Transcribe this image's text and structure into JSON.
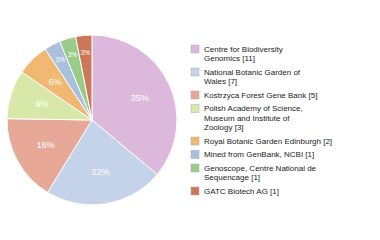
{
  "chart_data": {
    "type": "pie",
    "categories": [
      "Centre for Biodiversity\nGenomics [11]",
      "National Botanic Garden of\nWales [7]",
      "Kostrzyca Forest Gene Bank [5]",
      "Polish Academy of Science,\nMuseum and Institute of\nZoology [3]",
      "Royal Botanic Garden Edinburgh [2]",
      "Mined from GenBank, NCBI [1]",
      "Genoscope, Centre National de\nSequencage [1]",
      "GATC Biotech AG [1]"
    ],
    "values": [
      35,
      22,
      16,
      9,
      6,
      3,
      3,
      3
    ],
    "value_labels": [
      "35%",
      "22%",
      "16%",
      "9%",
      "6%",
      "3%",
      "3%",
      "3%"
    ],
    "colors": [
      "#ddb8dd",
      "#c5d3ea",
      "#e8a898",
      "#d8e8a8",
      "#f0b870",
      "#a8c0dc",
      "#98cc88",
      "#cc7858"
    ],
    "data_labels": true,
    "legend": "right"
  }
}
